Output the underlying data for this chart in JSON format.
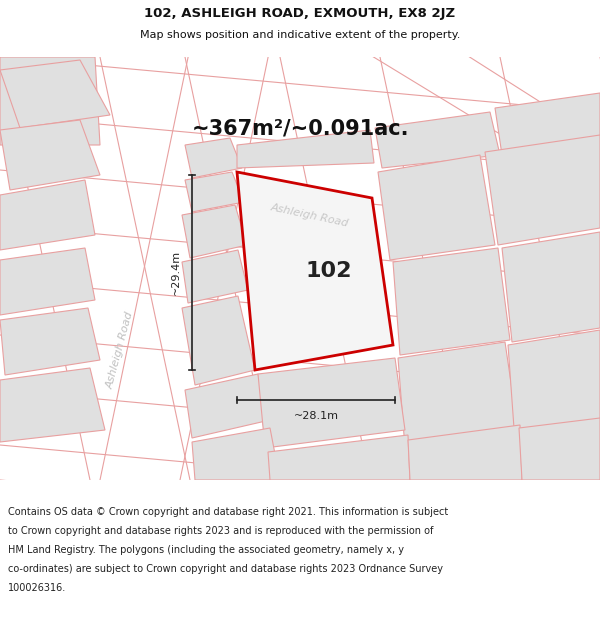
{
  "title_line1": "102, ASHLEIGH ROAD, EXMOUTH, EX8 2JZ",
  "title_line2": "Map shows position and indicative extent of the property.",
  "area_text": "~367m²/~0.091ac.",
  "house_number": "102",
  "dim_vertical": "~29.4m",
  "dim_horizontal": "~28.1m",
  "road_label_lower": "Ashleigh Road",
  "road_label_upper": "Ashleigh Road",
  "footer_lines": [
    "Contains OS data © Crown copyright and database right 2021. This information is subject",
    "to Crown copyright and database rights 2023 and is reproduced with the permission of",
    "HM Land Registry. The polygons (including the associated geometry, namely x, y",
    "co-ordinates) are subject to Crown copyright and database rights 2023 Ordnance Survey",
    "100026316."
  ],
  "bg_color": "#efefef",
  "road_bg": "#ffffff",
  "plot_fill": "#f5f5f5",
  "plot_edge": "#cc0000",
  "neighbor_fill": "#e0e0e0",
  "neighbor_edge": "#e8a0a0",
  "road_line_color": "#e8a0a0",
  "dim_line_color": "#222222",
  "title_color": "#111111",
  "area_color": "#111111",
  "road_text_color": "#c0c0c0",
  "footer_color": "#222222",
  "footer_bg": "#ffffff"
}
